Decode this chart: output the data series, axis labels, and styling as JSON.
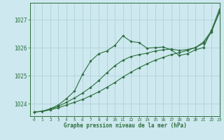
{
  "title": "Graphe pression niveau de la mer (hPa)",
  "bg_color": "#cde8ee",
  "grid_color": "#aacdd6",
  "line_color": "#2d6e3e",
  "xlim": [
    -0.5,
    23
  ],
  "ylim": [
    1023.55,
    1027.6
  ],
  "yticks": [
    1024,
    1025,
    1026,
    1027
  ],
  "xticks": [
    0,
    1,
    2,
    3,
    4,
    5,
    6,
    7,
    8,
    9,
    10,
    11,
    12,
    13,
    14,
    15,
    16,
    17,
    18,
    19,
    20,
    21,
    22,
    23
  ],
  "series": [
    {
      "x": [
        0,
        1,
        2,
        3,
        4,
        5,
        6,
        7,
        8,
        9,
        10,
        11,
        12,
        13,
        14,
        15,
        16,
        17,
        18,
        19,
        20,
        21,
        22,
        23
      ],
      "y": [
        1023.7,
        1023.72,
        1023.78,
        1023.85,
        1023.95,
        1024.05,
        1024.15,
        1024.28,
        1024.42,
        1024.58,
        1024.75,
        1024.95,
        1025.12,
        1025.28,
        1025.42,
        1025.55,
        1025.65,
        1025.75,
        1025.82,
        1025.9,
        1026.0,
        1026.2,
        1026.6,
        1027.25
      ]
    },
    {
      "x": [
        0,
        1,
        2,
        3,
        4,
        5,
        6,
        7,
        8,
        9,
        10,
        11,
        12,
        13,
        14,
        15,
        16,
        17,
        18,
        19,
        20,
        21,
        22,
        23
      ],
      "y": [
        1023.7,
        1023.72,
        1023.8,
        1023.9,
        1024.05,
        1024.2,
        1024.38,
        1024.58,
        1024.82,
        1025.1,
        1025.35,
        1025.55,
        1025.68,
        1025.75,
        1025.8,
        1025.88,
        1025.92,
        1025.95,
        1025.9,
        1025.93,
        1026.0,
        1026.15,
        1026.55,
        1027.3
      ]
    },
    {
      "x": [
        0,
        1,
        2,
        3,
        4,
        5,
        6,
        7,
        8,
        9,
        10,
        11,
        12,
        13,
        14,
        15,
        16,
        17,
        18,
        19,
        20,
        21,
        22,
        23
      ],
      "y": [
        1023.7,
        1023.73,
        1023.82,
        1023.95,
        1024.18,
        1024.45,
        1025.05,
        1025.52,
        1025.78,
        1025.88,
        1026.08,
        1026.42,
        1026.22,
        1026.18,
        1025.98,
        1026.0,
        1026.02,
        1025.92,
        1025.72,
        1025.78,
        1025.92,
        1026.0,
        1026.62,
        1027.38
      ]
    }
  ]
}
